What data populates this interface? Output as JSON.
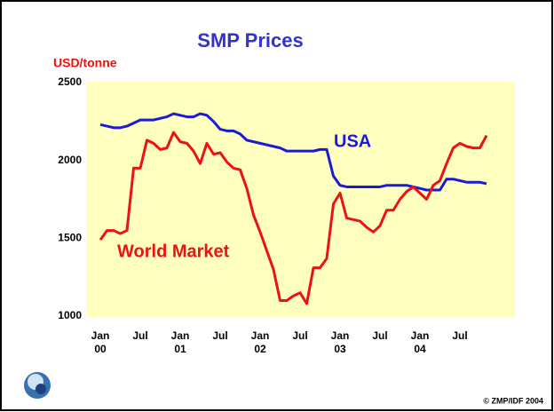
{
  "chart_data": {
    "type": "line",
    "title": "SMP Prices",
    "y_label": "USD/tonne",
    "credit": "© ZMP/IDF 2004",
    "categories": [
      "Jan 00",
      null,
      null,
      null,
      null,
      null,
      "Jul",
      null,
      null,
      null,
      null,
      null,
      "Jan 01",
      null,
      null,
      null,
      null,
      null,
      "Jul",
      null,
      null,
      null,
      null,
      null,
      "Jan 02",
      null,
      null,
      null,
      null,
      null,
      "Jul",
      null,
      null,
      null,
      null,
      null,
      "Jan 03",
      null,
      null,
      null,
      null,
      null,
      "Jul",
      null,
      null,
      null,
      null,
      null,
      "Jan 04",
      null,
      null,
      null,
      null,
      null,
      "Jul",
      null,
      null,
      null,
      null
    ],
    "series": [
      {
        "name": "USA",
        "color": "#1a1ad8",
        "values": [
          2230,
          2220,
          2210,
          2210,
          2220,
          2240,
          2260,
          2260,
          2260,
          2270,
          2280,
          2300,
          2290,
          2280,
          2280,
          2300,
          2290,
          2250,
          2200,
          2190,
          2190,
          2170,
          2130,
          2120,
          2110,
          2100,
          2090,
          2080,
          2060,
          2060,
          2060,
          2060,
          2060,
          2070,
          2070,
          1900,
          1840,
          1830,
          1830,
          1830,
          1830,
          1830,
          1830,
          1840,
          1840,
          1840,
          1840,
          1830,
          1820,
          1810,
          1810,
          1810,
          1880,
          1880,
          1870,
          1860,
          1860,
          1860,
          1850
        ]
      },
      {
        "name": "World Market",
        "color": "#ee1111",
        "values": [
          1490,
          1550,
          1550,
          1530,
          1550,
          1950,
          1950,
          2130,
          2110,
          2070,
          2080,
          2180,
          2120,
          2110,
          2060,
          1980,
          2110,
          2040,
          2050,
          1990,
          1950,
          1940,
          1820,
          1650,
          1540,
          1420,
          1300,
          1100,
          1100,
          1130,
          1150,
          1080,
          1310,
          1310,
          1370,
          1720,
          1790,
          1630,
          1620,
          1610,
          1570,
          1540,
          1580,
          1680,
          1680,
          1750,
          1800,
          1830,
          1790,
          1750,
          1840,
          1870,
          1980,
          2080,
          2110,
          2090,
          2080,
          2080,
          2160
        ]
      }
    ],
    "ylim": [
      1000,
      2500
    ],
    "yticks": [
      1000,
      1500,
      2000,
      2500
    ],
    "grid": false,
    "plot_background": "#ffffc0"
  }
}
